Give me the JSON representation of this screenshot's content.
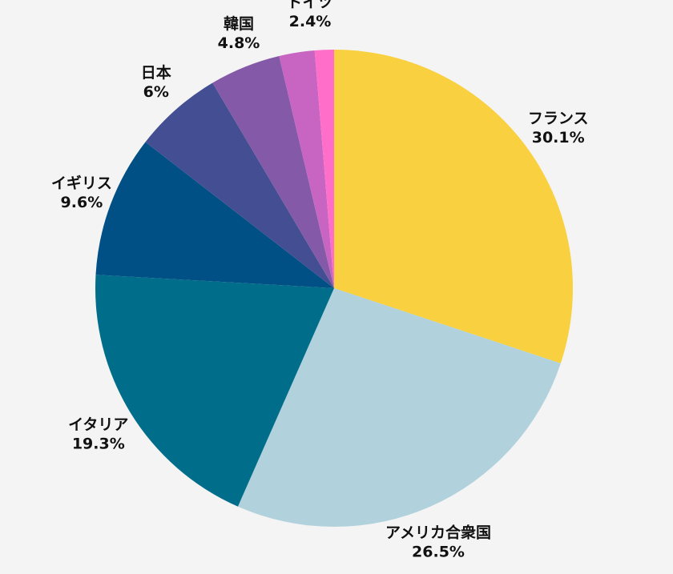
{
  "chart_data": {
    "type": "pie",
    "start_angle": "12 o'clock",
    "direction": "clockwise",
    "slices": [
      {
        "label": "フランス",
        "value": 30.1,
        "value_label": "30.1%",
        "color": "#f9d03f"
      },
      {
        "label": "アメリカ合衆国",
        "value": 26.5,
        "value_label": "26.5%",
        "color": "#b1d2dd"
      },
      {
        "label": "イタリア",
        "value": 19.3,
        "value_label": "19.3%",
        "color": "#006e8a"
      },
      {
        "label": "イギリス",
        "value": 9.6,
        "value_label": "9.6%",
        "color": "#004f85"
      },
      {
        "label": "日本",
        "value": 6,
        "value_label": "6%",
        "color": "#434f92"
      },
      {
        "label": "韓国",
        "value": 4.8,
        "value_label": "4.8%",
        "color": "#845aa8"
      },
      {
        "label": "ドイツ",
        "value": 2.4,
        "value_label": "2.4%",
        "color": "#c865c2"
      },
      {
        "label": "",
        "value": 1.3,
        "value_label": "",
        "color": "#ff6fc9"
      }
    ],
    "background": "#f4f4f4",
    "legend": "none",
    "labels": "outside"
  }
}
